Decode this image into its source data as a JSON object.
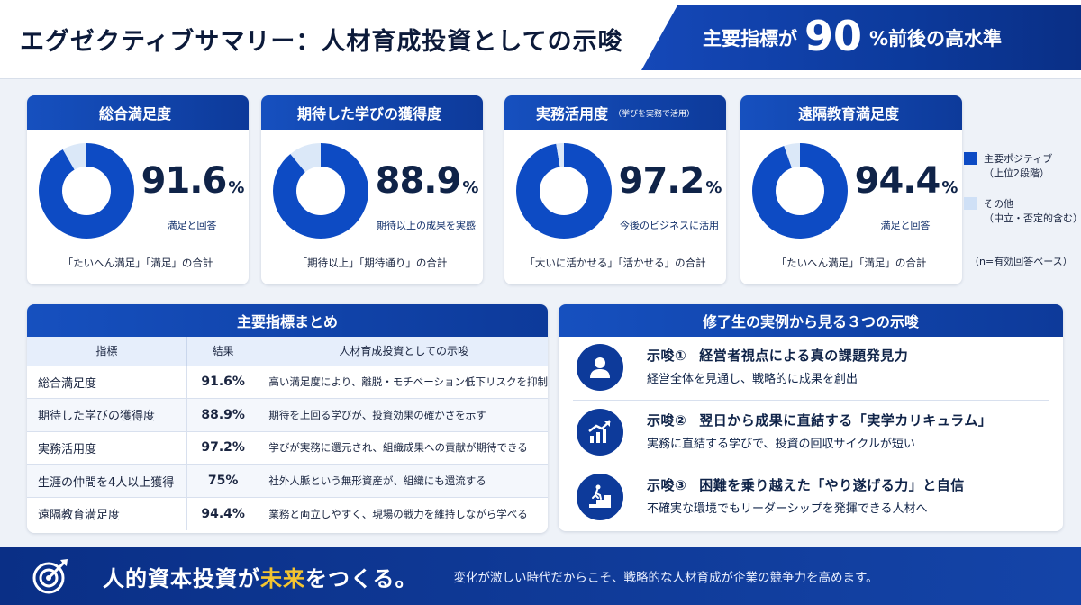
{
  "header": {
    "title": "エグゼクティブサマリー：人材育成投資としての示唆",
    "banner_pre": "主要指標が",
    "banner_big": "90",
    "banner_post": "%前後の高水準"
  },
  "colors": {
    "positive": "#0d4bc4",
    "other": "#dbe8f8",
    "accent": "#f4c430"
  },
  "cards": [
    {
      "title": "総合満足度",
      "subtitle": "",
      "value": "91.6",
      "pct": "%",
      "caption": "満足と回答",
      "footer": "「たいへん満足」「満足」の合計"
    },
    {
      "title": "期待した学びの獲得度",
      "subtitle": "",
      "value": "88.9",
      "pct": "%",
      "caption": "期待以上の成果を実感",
      "footer": "「期待以上」「期待通り」の合計"
    },
    {
      "title": "実務活用度",
      "subtitle": "（学びを実務で活用）",
      "value": "97.2",
      "pct": "%",
      "caption": "今後のビジネスに活用",
      "footer": "「大いに活かせる」「活かせる」の合計"
    },
    {
      "title": "遠隔教育満足度",
      "subtitle": "",
      "value": "94.4",
      "pct": "%",
      "caption": "満足と回答",
      "footer": "「たいへん満足」「満足」の合計"
    }
  ],
  "legend": {
    "positive_label": "主要ポジティブ",
    "positive_sub": "（上位2段階）",
    "other_label": "その他",
    "other_sub": "（中立・否定的含む）",
    "note": "（n=有効回答ベース）"
  },
  "chart_data": [
    {
      "type": "pie",
      "title": "総合満足度",
      "series": [
        {
          "values": [
            91.6,
            8.4
          ]
        }
      ],
      "labels": [
        "主要ポジティブ",
        "その他"
      ]
    },
    {
      "type": "pie",
      "title": "期待した学びの獲得度",
      "series": [
        {
          "values": [
            88.9,
            11.1
          ]
        }
      ],
      "labels": [
        "主要ポジティブ",
        "その他"
      ]
    },
    {
      "type": "pie",
      "title": "実務活用度",
      "series": [
        {
          "values": [
            97.2,
            2.8
          ]
        }
      ],
      "labels": [
        "主要ポジティブ",
        "その他"
      ]
    },
    {
      "type": "pie",
      "title": "遠隔教育満足度",
      "series": [
        {
          "values": [
            94.4,
            5.6
          ]
        }
      ],
      "labels": [
        "主要ポジティブ",
        "その他"
      ]
    }
  ],
  "summary": {
    "title": "主要指標まとめ",
    "headers": [
      "指標",
      "結果",
      "人材育成投資としての示唆"
    ],
    "rows": [
      {
        "indicator": "総合満足度",
        "result": "91.6%",
        "implication": "高い満足度により、離脱・モチベーション低下リスクを抑制"
      },
      {
        "indicator": "期待した学びの獲得度",
        "result": "88.9%",
        "implication": "期待を上回る学びが、投資効果の確かさを示す"
      },
      {
        "indicator": "実務活用度",
        "result": "97.2%",
        "implication": "学びが実務に還元され、組織成果への貢献が期待できる"
      },
      {
        "indicator": "生涯の仲間を4人以上獲得",
        "result": "75%",
        "implication": "社外人脈という無形資産が、組織にも還流する"
      },
      {
        "indicator": "遠隔教育満足度",
        "result": "94.4%",
        "implication": "業務と両立しやすく、現場の戦力を維持しながら学べる"
      }
    ]
  },
  "implications": {
    "title": "修了生の実例から見る３つの示唆",
    "items": [
      {
        "label": "示唆①",
        "title": "経営者視点による真の課題発見力",
        "desc": "経営全体を見通し、戦略的に成果を創出",
        "icon": "person-icon"
      },
      {
        "label": "示唆②",
        "title": "翌日から成果に直結する「実学カリキュラム」",
        "desc": "実務に直結する学びで、投資の回収サイクルが短い",
        "icon": "growth-chart-icon"
      },
      {
        "label": "示唆③",
        "title": "困難を乗り越えた「やり遂げる力」と自信",
        "desc": "不確実な環境でもリーダーシップを発揮できる人材へ",
        "icon": "climbing-stairs-icon"
      }
    ]
  },
  "footer": {
    "slogan_a": "人的資本投資が",
    "slogan_accent": "未来",
    "slogan_b": "をつくる。",
    "subtext": "変化が激しい時代だからこそ、戦略的な人材育成が企業の競争力を高めます。"
  }
}
